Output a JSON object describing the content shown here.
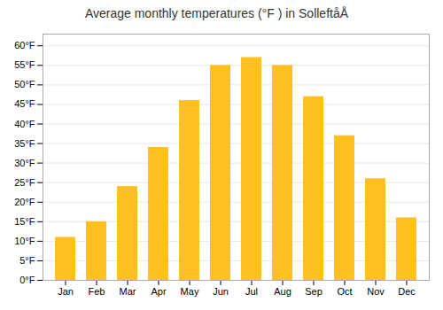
{
  "chart_data": {
    "type": "bar",
    "title": "Average monthly temperatures (°F ) in SolleftåÅ",
    "categories": [
      "Jan",
      "Feb",
      "Mar",
      "Apr",
      "May",
      "Jun",
      "Jul",
      "Aug",
      "Sep",
      "Oct",
      "Nov",
      "Dec"
    ],
    "values": [
      11,
      15,
      24,
      34,
      46,
      55,
      57,
      55,
      47,
      37,
      26,
      16
    ],
    "color": "#FFC020",
    "ylim": [
      0,
      63
    ],
    "yticks": [
      {
        "value": 0,
        "label": "0°F"
      },
      {
        "value": 5,
        "label": "5°F"
      },
      {
        "value": 10,
        "label": "10°F"
      },
      {
        "value": 15,
        "label": "15°F"
      },
      {
        "value": 20,
        "label": "20°F"
      },
      {
        "value": 25,
        "label": "25°F"
      },
      {
        "value": 30,
        "label": "30°F"
      },
      {
        "value": 35,
        "label": "35°F"
      },
      {
        "value": 40,
        "label": "40°F"
      },
      {
        "value": 45,
        "label": "45°F"
      },
      {
        "value": 50,
        "label": "50°F"
      },
      {
        "value": 55,
        "label": "55°F"
      },
      {
        "value": 60,
        "label": "60°F"
      }
    ],
    "grid": true
  }
}
